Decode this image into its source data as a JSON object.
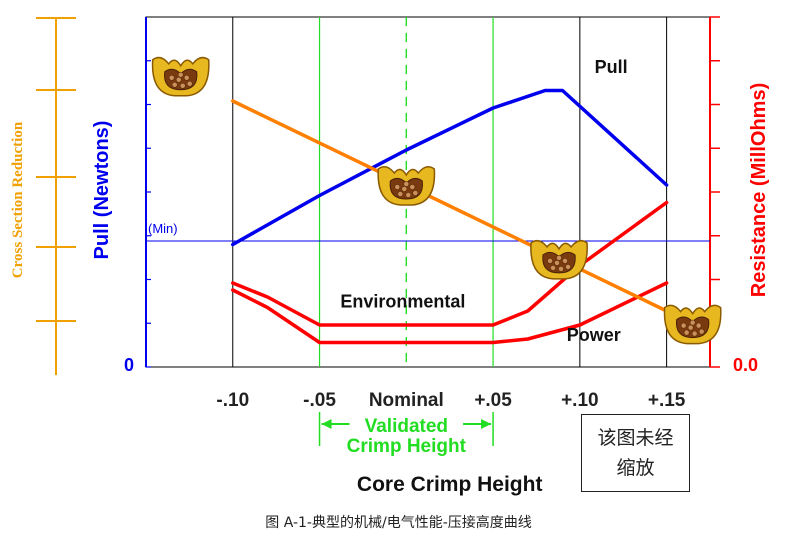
{
  "chart_data": {
    "type": "line",
    "xlabel": "Core Crimp Height",
    "left_ylabel": "Pull (Newtons)",
    "right_ylabel": "Resistance (MillOhms)",
    "outer_ylabel": "Cross Section Reduction",
    "left_origin_label": "0",
    "right_origin_label": "0.0",
    "x_ticks": [
      "-.10",
      "-.05",
      "Nominal",
      "+.05",
      "+.10",
      "+.15"
    ],
    "x_tick_values": [
      -0.1,
      -0.05,
      0,
      0.05,
      0.1,
      0.15
    ],
    "xlim": [
      -0.15,
      0.175
    ],
    "ylim": [
      0,
      100
    ],
    "min_line": {
      "label": "(Min)",
      "y": 36
    },
    "validated_label": [
      "Validated",
      "Crimp Height"
    ],
    "validated_range": [
      -0.05,
      0.05
    ],
    "series": [
      {
        "name": "Pull",
        "color": "#0000ee",
        "x": [
          -0.1,
          -0.05,
          0,
          0.05,
          0.08,
          0.09,
          0.15
        ],
        "y": [
          35,
          49,
          62,
          74,
          79,
          79,
          52
        ]
      },
      {
        "name": "Environmental",
        "color": "#ff0000",
        "x": [
          -0.1,
          -0.08,
          -0.05,
          0.05,
          0.07,
          0.1,
          0.15
        ],
        "y": [
          24,
          20,
          12,
          12,
          16,
          29,
          47
        ]
      },
      {
        "name": "Power",
        "color": "#ff0000",
        "x": [
          -0.1,
          -0.08,
          -0.05,
          0.05,
          0.07,
          0.1,
          0.15
        ],
        "y": [
          22,
          17,
          7,
          7,
          8,
          12,
          24
        ]
      },
      {
        "name": "",
        "color": "#ff7f00",
        "x": [
          -0.1,
          0.15
        ],
        "y": [
          76,
          16
        ]
      }
    ]
  },
  "note_box": "该图未经缩放",
  "caption": "图 A-1-典型的机械/电气性能-压接高度曲线",
  "colors": {
    "pull": "#0000ee",
    "resistance": "#ff0000",
    "reduction": "#f0a000",
    "trend": "#ff7f00",
    "validated": "#22dd22",
    "grid": "#000000"
  }
}
